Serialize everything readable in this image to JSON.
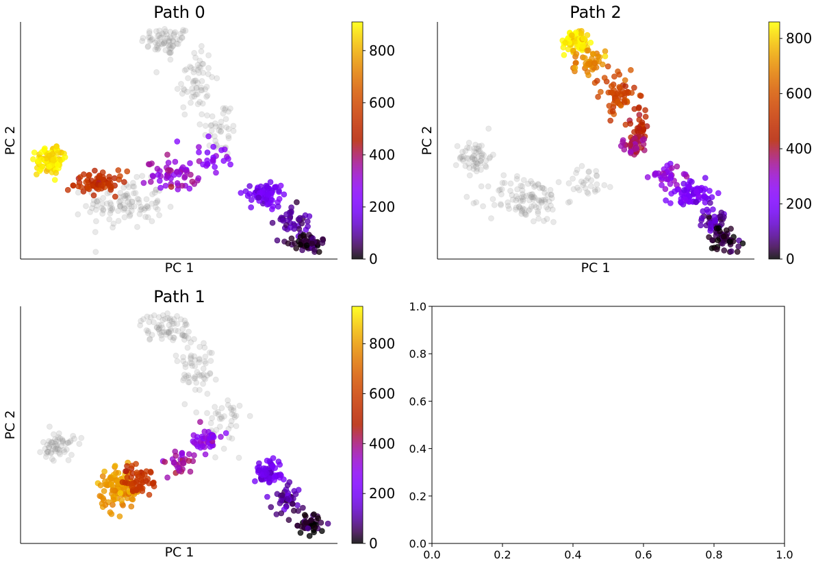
{
  "chart_data": [
    {
      "type": "scatter",
      "title": "Path 0",
      "xlabel": "PC 1",
      "ylabel": "PC 2",
      "xticks": false,
      "yticks": false,
      "colorbar": {
        "range": [
          0,
          910
        ],
        "ticks": [
          "0",
          "200",
          "400",
          "600",
          "800"
        ],
        "colormap": "gnuplot"
      },
      "clusters": [
        {
          "group": "background",
          "cx": 0.46,
          "cy": 0.92,
          "sx": 0.04,
          "sy": 0.03,
          "n": 70,
          "value": null
        },
        {
          "group": "background",
          "cx": 0.55,
          "cy": 0.75,
          "sx": 0.03,
          "sy": 0.08,
          "n": 60,
          "value": null
        },
        {
          "group": "background",
          "cx": 0.63,
          "cy": 0.55,
          "sx": 0.03,
          "sy": 0.06,
          "n": 40,
          "value": null
        },
        {
          "group": "background",
          "cx": 0.33,
          "cy": 0.23,
          "sx": 0.06,
          "sy": 0.05,
          "n": 110,
          "value": null
        },
        {
          "group": "path",
          "cx": 0.09,
          "cy": 0.42,
          "sx": 0.02,
          "sy": 0.03,
          "n": 90,
          "value": 880
        },
        {
          "group": "path",
          "cx": 0.25,
          "cy": 0.32,
          "sx": 0.04,
          "sy": 0.025,
          "n": 70,
          "value": 520
        },
        {
          "group": "path",
          "cx": 0.48,
          "cy": 0.35,
          "sx": 0.04,
          "sy": 0.03,
          "n": 55,
          "value": 330
        },
        {
          "group": "path",
          "cx": 0.61,
          "cy": 0.43,
          "sx": 0.03,
          "sy": 0.03,
          "n": 25,
          "value": 260
        },
        {
          "group": "path",
          "cx": 0.77,
          "cy": 0.27,
          "sx": 0.025,
          "sy": 0.025,
          "n": 70,
          "value": 190
        },
        {
          "group": "path",
          "cx": 0.85,
          "cy": 0.16,
          "sx": 0.025,
          "sy": 0.035,
          "n": 40,
          "value": 90
        },
        {
          "group": "path",
          "cx": 0.91,
          "cy": 0.07,
          "sx": 0.025,
          "sy": 0.02,
          "n": 50,
          "value": 20
        }
      ]
    },
    {
      "type": "scatter",
      "title": "Path 2",
      "xlabel": "PC 1",
      "ylabel": "PC 2",
      "xticks": false,
      "yticks": false,
      "colorbar": {
        "range": [
          0,
          860
        ],
        "ticks": [
          "0",
          "200",
          "400",
          "600",
          "800"
        ],
        "colormap": "gnuplot"
      },
      "clusters": [
        {
          "group": "background",
          "cx": 0.12,
          "cy": 0.43,
          "sx": 0.025,
          "sy": 0.035,
          "n": 60,
          "value": null
        },
        {
          "group": "background",
          "cx": 0.28,
          "cy": 0.25,
          "sx": 0.06,
          "sy": 0.05,
          "n": 110,
          "value": null
        },
        {
          "group": "background",
          "cx": 0.48,
          "cy": 0.33,
          "sx": 0.04,
          "sy": 0.03,
          "n": 30,
          "value": null
        },
        {
          "group": "path",
          "cx": 0.44,
          "cy": 0.92,
          "sx": 0.02,
          "sy": 0.025,
          "n": 80,
          "value": 840
        },
        {
          "group": "path",
          "cx": 0.48,
          "cy": 0.83,
          "sx": 0.025,
          "sy": 0.03,
          "n": 40,
          "value": 710
        },
        {
          "group": "path",
          "cx": 0.57,
          "cy": 0.7,
          "sx": 0.03,
          "sy": 0.05,
          "n": 60,
          "value": 560
        },
        {
          "group": "path",
          "cx": 0.64,
          "cy": 0.56,
          "sx": 0.015,
          "sy": 0.04,
          "n": 30,
          "value": 450
        },
        {
          "group": "path",
          "cx": 0.62,
          "cy": 0.48,
          "sx": 0.02,
          "sy": 0.02,
          "n": 40,
          "value": 370
        },
        {
          "group": "path",
          "cx": 0.72,
          "cy": 0.35,
          "sx": 0.025,
          "sy": 0.025,
          "n": 35,
          "value": 290
        },
        {
          "group": "path",
          "cx": 0.8,
          "cy": 0.28,
          "sx": 0.03,
          "sy": 0.025,
          "n": 70,
          "value": 200
        },
        {
          "group": "path",
          "cx": 0.87,
          "cy": 0.16,
          "sx": 0.02,
          "sy": 0.03,
          "n": 40,
          "value": 100
        },
        {
          "group": "path",
          "cx": 0.91,
          "cy": 0.08,
          "sx": 0.025,
          "sy": 0.02,
          "n": 45,
          "value": 25
        }
      ]
    },
    {
      "type": "scatter",
      "title": "Path 1",
      "xlabel": "PC 1",
      "ylabel": "PC 2",
      "xticks": false,
      "yticks": false,
      "colorbar": {
        "range": [
          0,
          950
        ],
        "ticks": [
          "0",
          "200",
          "400",
          "600",
          "800"
        ],
        "colormap": "gnuplot"
      },
      "clusters": [
        {
          "group": "background",
          "cx": 0.46,
          "cy": 0.91,
          "sx": 0.04,
          "sy": 0.03,
          "n": 70,
          "value": null
        },
        {
          "group": "background",
          "cx": 0.55,
          "cy": 0.74,
          "sx": 0.03,
          "sy": 0.08,
          "n": 60,
          "value": null
        },
        {
          "group": "background",
          "cx": 0.65,
          "cy": 0.52,
          "sx": 0.03,
          "sy": 0.06,
          "n": 40,
          "value": null
        },
        {
          "group": "background",
          "cx": 0.12,
          "cy": 0.41,
          "sx": 0.025,
          "sy": 0.03,
          "n": 60,
          "value": null
        },
        {
          "group": "path",
          "cx": 0.31,
          "cy": 0.23,
          "sx": 0.035,
          "sy": 0.04,
          "n": 110,
          "value": 800
        },
        {
          "group": "path",
          "cx": 0.38,
          "cy": 0.27,
          "sx": 0.025,
          "sy": 0.03,
          "n": 50,
          "value": 560
        },
        {
          "group": "path",
          "cx": 0.5,
          "cy": 0.34,
          "sx": 0.03,
          "sy": 0.03,
          "n": 30,
          "value": 370
        },
        {
          "group": "path",
          "cx": 0.59,
          "cy": 0.44,
          "sx": 0.02,
          "sy": 0.02,
          "n": 40,
          "value": 300
        },
        {
          "group": "path",
          "cx": 0.78,
          "cy": 0.29,
          "sx": 0.025,
          "sy": 0.025,
          "n": 70,
          "value": 190
        },
        {
          "group": "path",
          "cx": 0.84,
          "cy": 0.19,
          "sx": 0.02,
          "sy": 0.03,
          "n": 40,
          "value": 100
        },
        {
          "group": "path",
          "cx": 0.91,
          "cy": 0.08,
          "sx": 0.025,
          "sy": 0.02,
          "n": 45,
          "value": 20
        }
      ]
    },
    {
      "type": "scatter",
      "title": "",
      "xlim": [
        0.0,
        1.0
      ],
      "ylim": [
        0.0,
        1.0
      ],
      "xticks": [
        "0.0",
        "0.2",
        "0.4",
        "0.6",
        "0.8",
        "1.0"
      ],
      "yticks": [
        "0.0",
        "0.2",
        "0.4",
        "0.6",
        "0.8",
        "1.0"
      ],
      "points": []
    }
  ]
}
